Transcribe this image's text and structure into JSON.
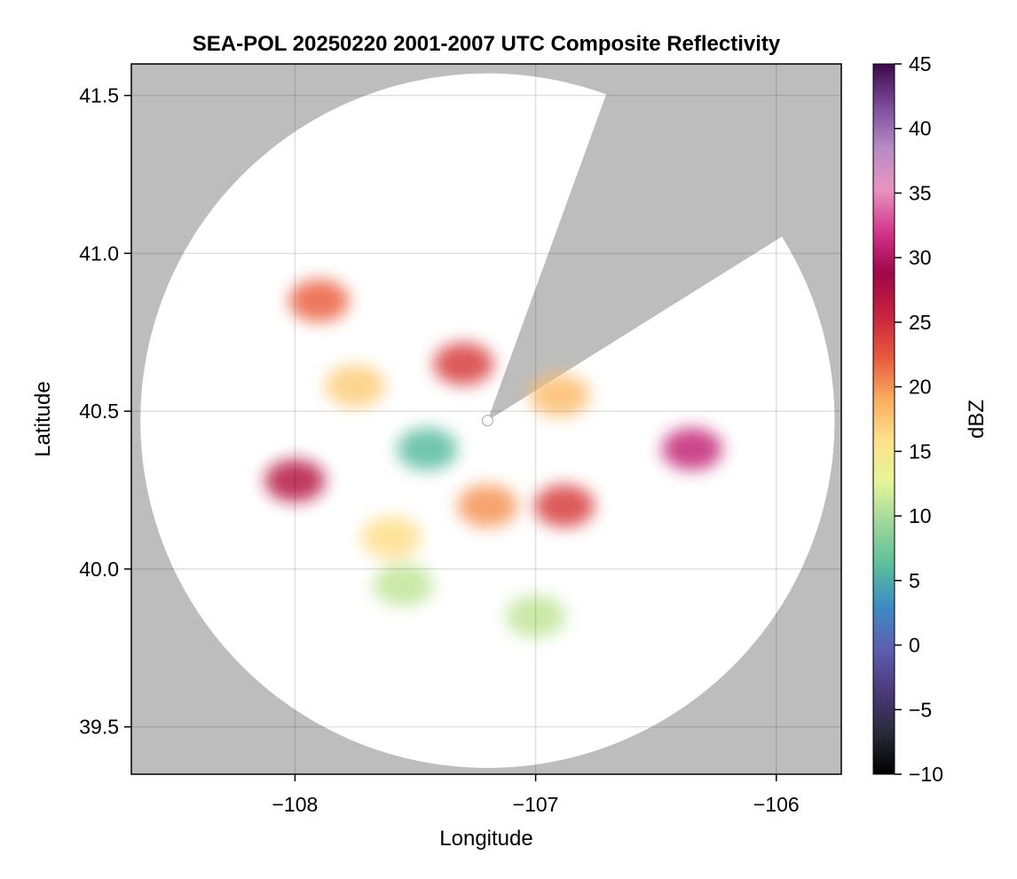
{
  "chart_data": {
    "type": "heatmap",
    "title": "SEA-POL 20250220 2001-2007 UTC Composite Reflectivity",
    "xlabel": "Longitude",
    "ylabel": "Latitude",
    "xlim": [
      -108.68,
      -105.73
    ],
    "ylim": [
      39.35,
      41.6
    ],
    "xticks": [
      -108,
      -107,
      -106
    ],
    "xtick_labels": [
      "−108",
      "−107",
      "−106"
    ],
    "yticks": [
      39.5,
      40.0,
      40.5,
      41.0,
      41.5
    ],
    "ytick_labels": [
      "39.5",
      "40.0",
      "40.5",
      "41.0",
      "41.5"
    ],
    "grid": true,
    "background_color": "#bdbdbd",
    "radar": {
      "center_lon": -107.2,
      "center_lat": 40.47,
      "range_lat_deg": 1.1,
      "blocked_sector_deg_from_north": [
        20,
        58
      ],
      "coverage_color": "#ffffff"
    },
    "colorbar": {
      "label": "dBZ",
      "min": -10,
      "max": 45,
      "ticks": [
        -10,
        -5,
        0,
        5,
        10,
        15,
        20,
        25,
        30,
        35,
        40,
        45
      ],
      "tick_labels": [
        "−10",
        "−5",
        "0",
        "5",
        "10",
        "15",
        "20",
        "25",
        "30",
        "35",
        "40",
        "45"
      ],
      "colormap": "spectral_reversed_with_dark_purple",
      "stops": [
        "#000000",
        "#2a2a3a",
        "#4b3a7a",
        "#5d5fb0",
        "#3b8ac4",
        "#5bbf9b",
        "#9dd69a",
        "#e6f598",
        "#fee08b",
        "#f9ab5d",
        "#e8573c",
        "#c7223f",
        "#a0064a",
        "#d3368b",
        "#e995c0",
        "#b68bc6",
        "#7a4a9a",
        "#3d0a4a"
      ]
    },
    "echo_regions": [
      {
        "lon": -107.75,
        "lat": 40.58,
        "dbz": 17
      },
      {
        "lon": -107.9,
        "lat": 40.85,
        "dbz": 22
      },
      {
        "lon": -107.3,
        "lat": 40.65,
        "dbz": 24
      },
      {
        "lon": -107.45,
        "lat": 40.38,
        "dbz": 6
      },
      {
        "lon": -108.0,
        "lat": 40.28,
        "dbz": 27
      },
      {
        "lon": -107.6,
        "lat": 40.1,
        "dbz": 16
      },
      {
        "lon": -107.55,
        "lat": 39.95,
        "dbz": 11
      },
      {
        "lon": -107.0,
        "lat": 39.85,
        "dbz": 11
      },
      {
        "lon": -106.88,
        "lat": 40.2,
        "dbz": 24
      },
      {
        "lon": -106.9,
        "lat": 40.55,
        "dbz": 18
      },
      {
        "lon": -107.2,
        "lat": 40.2,
        "dbz": 20
      },
      {
        "lon": -106.35,
        "lat": 40.38,
        "dbz": 31
      }
    ]
  }
}
